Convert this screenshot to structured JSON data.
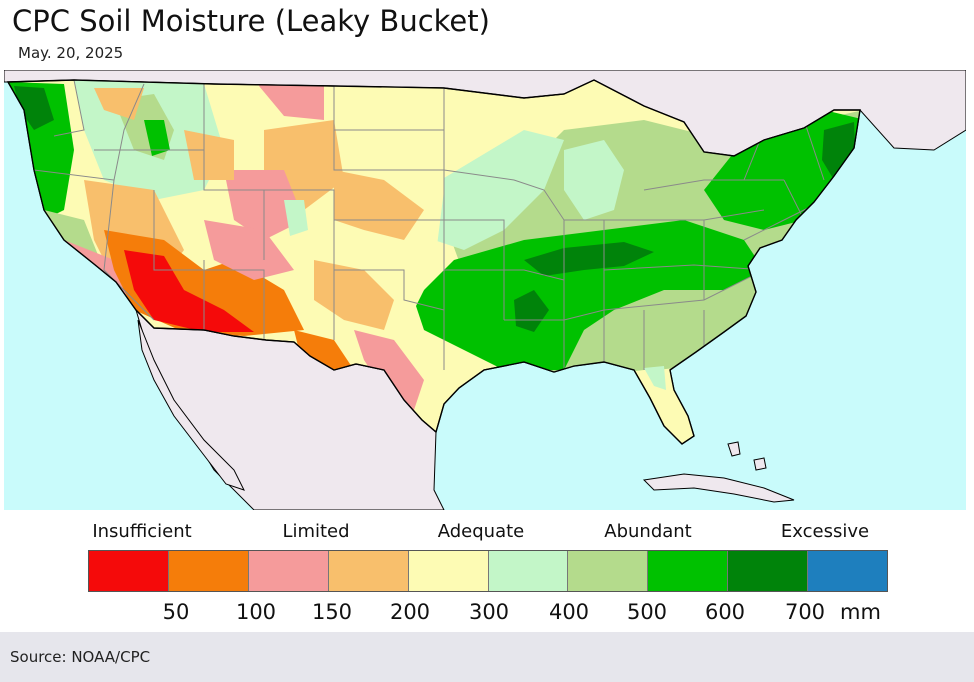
{
  "title": "CPC Soil Moisture (Leaky Bucket)",
  "date": "May. 20, 2025",
  "legend": {
    "categories": [
      "Insufficient",
      "Limited",
      "Adequate",
      "Abundant",
      "Excessive"
    ],
    "swatch_colors": [
      "#f50a0a",
      "#f57d0a",
      "#f59b9b",
      "#f8bf6c",
      "#fdfbb4",
      "#c3f6c8",
      "#b4db8c",
      "#00c100",
      "#00830a",
      "#1e7fbe"
    ],
    "ticks": [
      "50",
      "100",
      "150",
      "200",
      "300",
      "400",
      "500",
      "600",
      "700"
    ],
    "unit": "mm"
  },
  "source": "Source: NOAA/CPC"
}
